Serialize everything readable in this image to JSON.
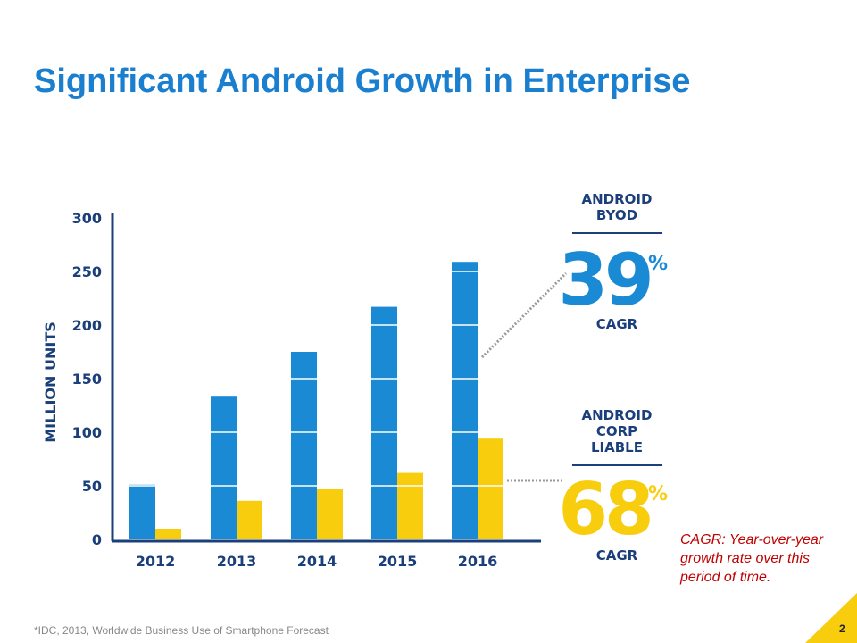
{
  "slide": {
    "title": "Significant Android Growth in Enterprise",
    "footnote": "*IDC, 2013, Worldwide Business Use of Smartphone Forecast",
    "note": "CAGR:  Year-over-year growth rate over this period of time.",
    "page_number": "2"
  },
  "colors": {
    "title": "#1b7fd0",
    "byod": "#1b8ad4",
    "corp": "#f8cd0e",
    "axis": "#1b3f7a",
    "text": "#1b3f7a",
    "accent_triangle": "#f8cd0e",
    "note": "#c00000"
  },
  "chart_data": {
    "type": "bar",
    "title": "",
    "xlabel": "",
    "ylabel": "MILLION UNITS",
    "ylim": [
      0,
      300
    ],
    "yticks": [
      "0",
      "50",
      "100",
      "150",
      "200",
      "250",
      "300"
    ],
    "categories": [
      "2012",
      "2013",
      "2014",
      "2015",
      "2016"
    ],
    "series": [
      {
        "name": "ANDROID BYOD",
        "values": [
          51,
          134,
          175,
          217,
          259
        ]
      },
      {
        "name": "ANDROID CORP LIABLE",
        "values": [
          10,
          36,
          47,
          62,
          94
        ]
      }
    ],
    "grid": false,
    "callouts": [
      {
        "series_label_lines": [
          "ANDROID",
          "BYOD"
        ],
        "value": "39",
        "unit": "%",
        "caption": "CAGR"
      },
      {
        "series_label_lines": [
          "ANDROID",
          "CORP",
          "LIABLE"
        ],
        "value": "68",
        "unit": "%",
        "caption": "CAGR"
      }
    ]
  }
}
